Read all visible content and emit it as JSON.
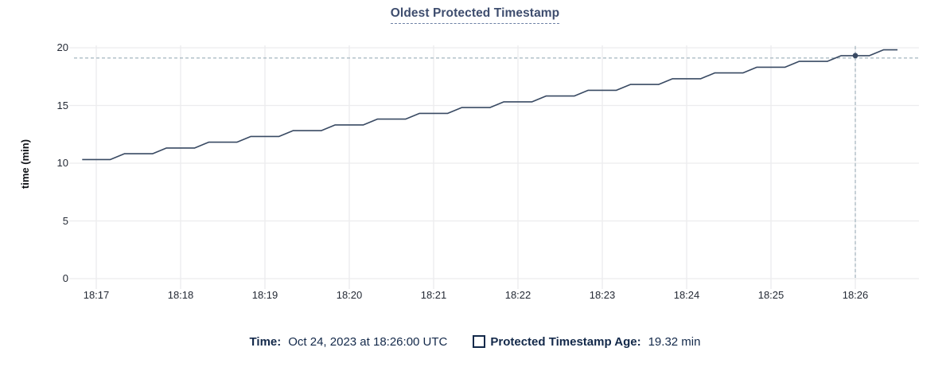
{
  "chart": {
    "colors": {
      "line": "#394a63",
      "dot": "#394a63",
      "grid": "#ececee",
      "guide": "#a4b6bf",
      "title": "#3e4d6e",
      "axis_text": "#242a35",
      "legend_text": "#13294a"
    }
  },
  "chart_data": {
    "type": "line",
    "title": "Oldest Protected Timestamp",
    "xlabel": "",
    "ylabel": "time (min)",
    "ylim": [
      0,
      20
    ],
    "yticks": [
      0,
      5,
      10,
      15,
      20
    ],
    "xticks": [
      "18:17",
      "18:18",
      "18:19",
      "18:20",
      "18:21",
      "18:22",
      "18:23",
      "18:24",
      "18:25",
      "18:26"
    ],
    "x_start": "18:16:50",
    "x_interval_sec": 10,
    "grid": true,
    "legend_position": "bottom",
    "series": [
      {
        "name": "Protected Timestamp Age",
        "unit": "min",
        "values": [
          10.32,
          10.32,
          10.32,
          10.82,
          10.82,
          10.82,
          11.32,
          11.32,
          11.32,
          11.82,
          11.82,
          11.82,
          12.32,
          12.32,
          12.32,
          12.82,
          12.82,
          12.82,
          13.32,
          13.32,
          13.32,
          13.82,
          13.82,
          13.82,
          14.32,
          14.32,
          14.32,
          14.82,
          14.82,
          14.82,
          15.32,
          15.32,
          15.32,
          15.82,
          15.82,
          15.82,
          16.32,
          16.32,
          16.32,
          16.82,
          16.82,
          16.82,
          17.32,
          17.32,
          17.32,
          17.82,
          17.82,
          17.82,
          18.32,
          18.32,
          18.32,
          18.82,
          18.82,
          18.82,
          19.32,
          19.32,
          19.32,
          19.82,
          19.82
        ]
      }
    ],
    "hover_point": {
      "time": "18:26:00",
      "index": 55,
      "value": 19.32
    }
  },
  "legend": {
    "time_label": "Time:",
    "time_value": "Oct 24, 2023 at 18:26:00 UTC",
    "series_label": "Protected Timestamp Age:",
    "series_value": "19.32 min"
  }
}
